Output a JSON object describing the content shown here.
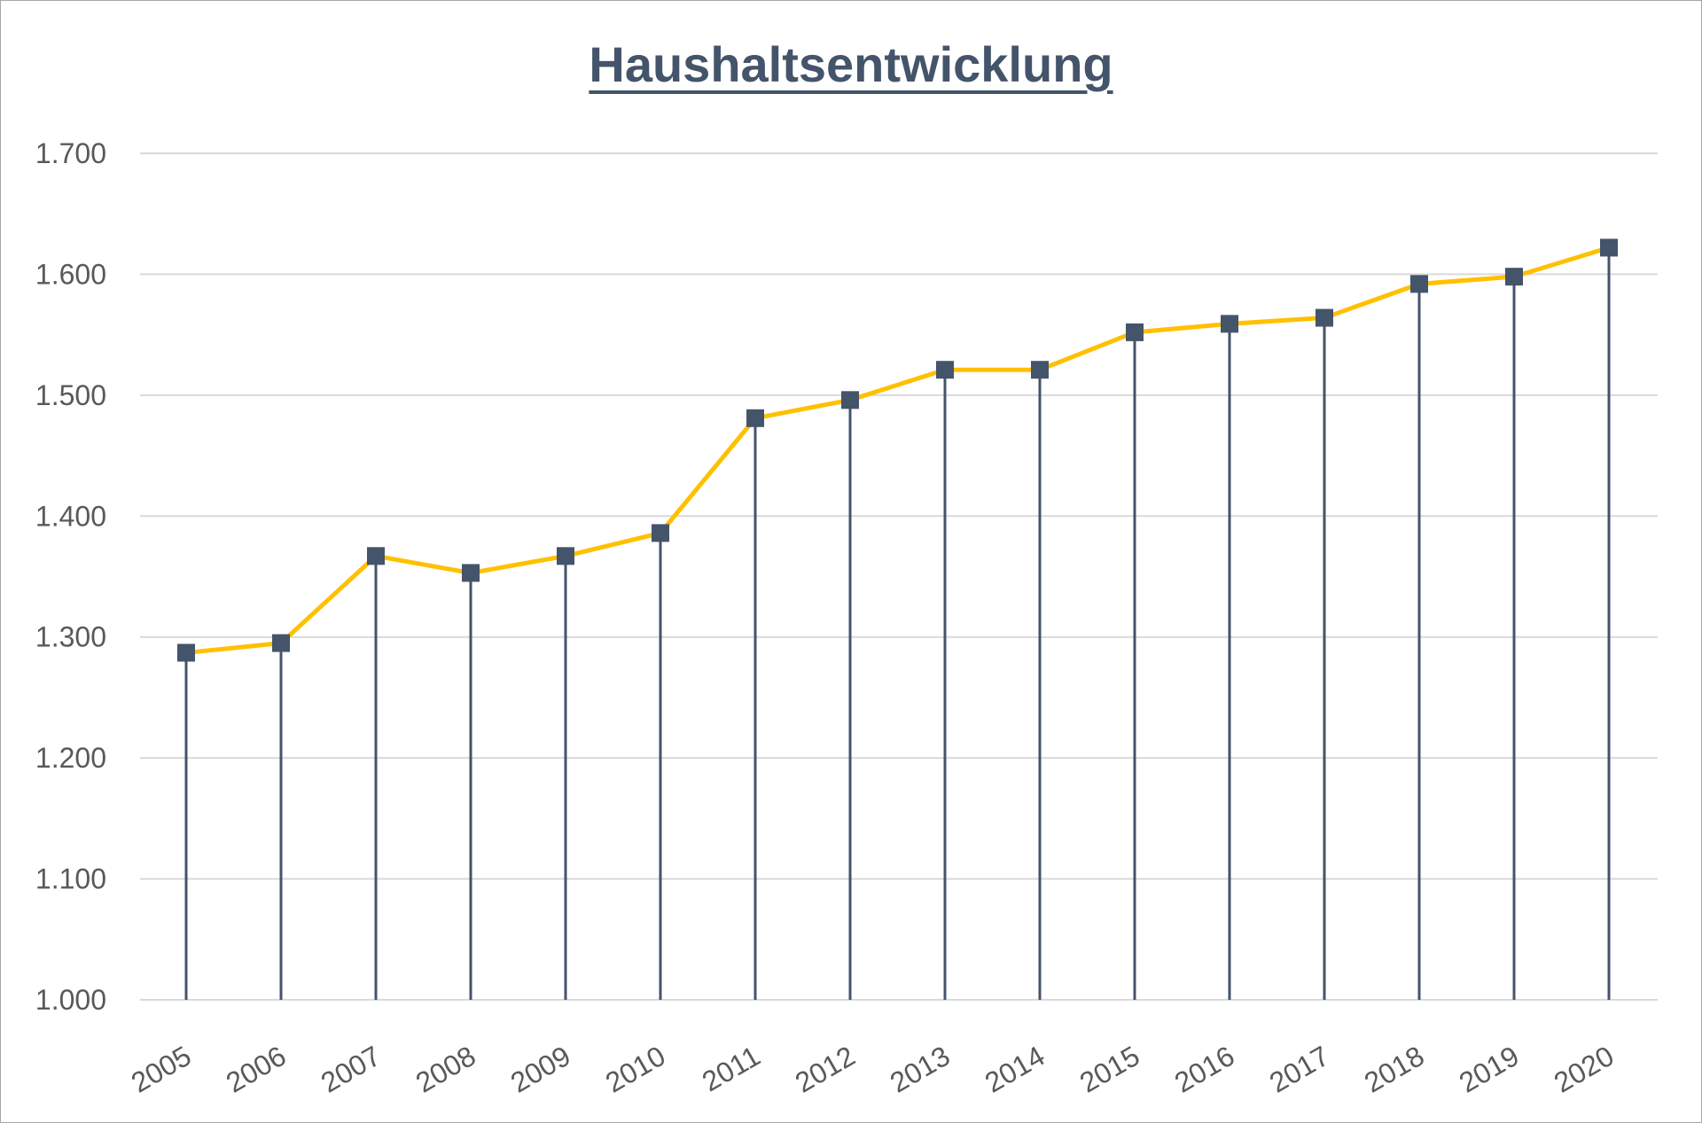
{
  "chart_data": {
    "type": "line",
    "title": "Haushaltsentwicklung",
    "xlabel": "",
    "ylabel": "",
    "categories": [
      "2005",
      "2006",
      "2007",
      "2008",
      "2009",
      "2010",
      "2011",
      "2012",
      "2013",
      "2014",
      "2015",
      "2016",
      "2017",
      "2018",
      "2019",
      "2020"
    ],
    "series": [
      {
        "values": [
          1287,
          1295,
          1367,
          1353,
          1367,
          1386,
          1481,
          1496,
          1521,
          1521,
          1552,
          1559,
          1564,
          1592,
          1598,
          1622
        ],
        "line_color": "#ffc000",
        "marker_color": "#44546a",
        "marker": "square"
      }
    ],
    "drop_lines": true,
    "drop_line_color": "#44546a",
    "ylim": [
      1000,
      1700
    ],
    "yticks": [
      1000,
      1100,
      1200,
      1300,
      1400,
      1500,
      1600,
      1700
    ],
    "ytick_labels": [
      "1.000",
      "1.100",
      "1.200",
      "1.300",
      "1.400",
      "1.500",
      "1.600",
      "1.700"
    ],
    "grid": true,
    "grid_color": "#d9d9d9",
    "legend": "none"
  }
}
